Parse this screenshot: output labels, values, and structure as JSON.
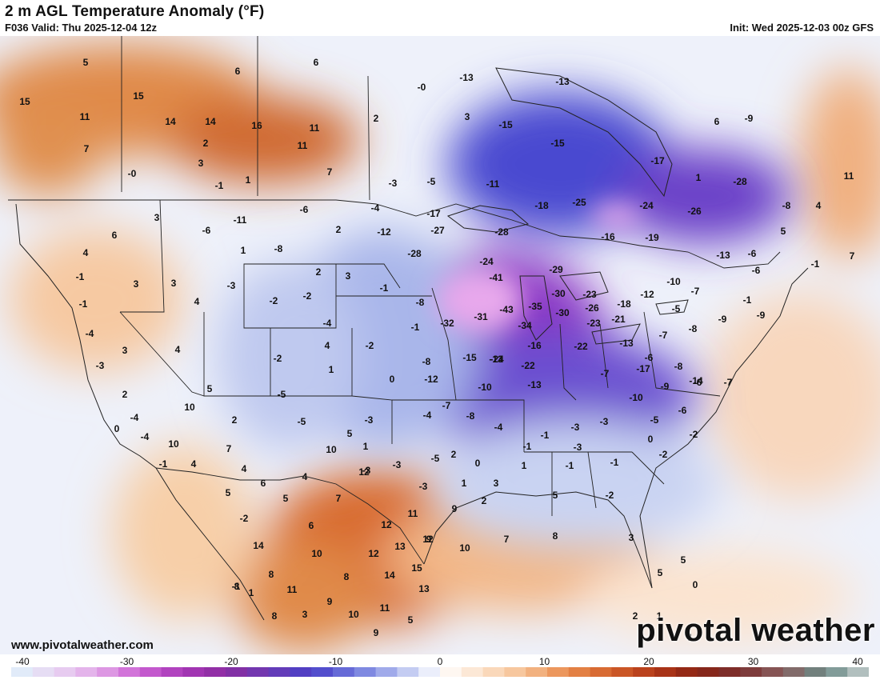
{
  "header": {
    "title": "2 m AGL Temperature Anomaly (°F)",
    "valid": "F036 Valid: Thu 2025-12-04 12z",
    "init": "Init: Wed 2025-12-03 00z GFS"
  },
  "footer": {
    "website": "www.pivotalweather.com",
    "brand": "pivotal weather"
  },
  "colors": {
    "cold_deep": "#f0c8f0",
    "cold_violet": "#9a3fd0",
    "cold_blue": "#4a4ad8",
    "cool_light": "#c8d4f0",
    "neutral": "#ffffff",
    "warm_light": "#fbe2cc",
    "warm_orange": "#e2803a",
    "warm_dark": "#b8461a"
  },
  "colorbar": {
    "ticks": [
      "-40",
      "-30",
      "-20",
      "-10",
      "0",
      "10",
      "20",
      "30",
      "40"
    ]
  },
  "values": [
    "5",
    "6",
    "6",
    "15",
    "11",
    "15",
    "14",
    "14",
    "16",
    "11",
    "11",
    "7",
    "2",
    "3",
    "-0",
    "-1",
    "1",
    "7",
    "-0",
    "2",
    "3",
    "-13",
    "-13",
    "-15",
    "-15",
    "-17",
    "1",
    "6",
    "-9",
    "11",
    "-3",
    "-5",
    "-11",
    "-25",
    "-24",
    "-26",
    "-28",
    "-8",
    "4",
    "5",
    "3",
    "6",
    "-6",
    "-11",
    "-6",
    "-4",
    "2",
    "-17",
    "-12",
    "-27",
    "-28",
    "-28",
    "-18",
    "-16",
    "-19",
    "-13",
    "-6",
    "-1",
    "7",
    "4",
    "-1",
    "3",
    "3",
    "-3",
    "1",
    "-8",
    "2",
    "3",
    "-1",
    "-24",
    "-41",
    "-29",
    "-30",
    "-23",
    "-18",
    "-12",
    "-10",
    "-7",
    "-5",
    "-6",
    "-1",
    "-1",
    "4",
    "-2",
    "-2",
    "-4",
    "-8",
    "-32",
    "-31",
    "-43",
    "-35",
    "-34",
    "-30",
    "-26",
    "-23",
    "-21",
    "-7",
    "-8",
    "-9",
    "-9",
    "-4",
    "3",
    "4",
    "-2",
    "4",
    "-2",
    "-1",
    "-15",
    "-13",
    "-16",
    "-22",
    "-24",
    "-22",
    "-13",
    "-6",
    "-7",
    "-17",
    "-14",
    "-8",
    "-7",
    "-3",
    "2",
    "5",
    "1",
    "-5",
    "0",
    "-8",
    "-12",
    "-10",
    "-13",
    "-10",
    "-9",
    "-6",
    "-6",
    "-4",
    "0",
    "2",
    "-5",
    "5",
    "-3",
    "-4",
    "-7",
    "-8",
    "-4",
    "-1",
    "-3",
    "-5",
    "-3",
    "0",
    "-2",
    "-4",
    "10",
    "10",
    "7",
    "10",
    "1",
    "-3",
    "-3",
    "-5",
    "2",
    "1",
    "-1",
    "-1",
    "-2",
    "-3",
    "-1",
    "-1",
    "4",
    "4",
    "6",
    "4",
    "12",
    "-3",
    "1",
    "3",
    "0",
    "2",
    "5",
    "5",
    "7",
    "9",
    "11",
    "12",
    "9",
    "5",
    "-2",
    "-2",
    "6",
    "14",
    "10",
    "12",
    "13",
    "12",
    "10",
    "7",
    "8",
    "3",
    "-1",
    "8",
    "14",
    "15",
    "13",
    "8",
    "8",
    "5",
    "5",
    "0",
    "8",
    "11",
    "9",
    "10",
    "11",
    "5",
    "3",
    "1",
    "2",
    "1",
    "1",
    "9"
  ]
}
